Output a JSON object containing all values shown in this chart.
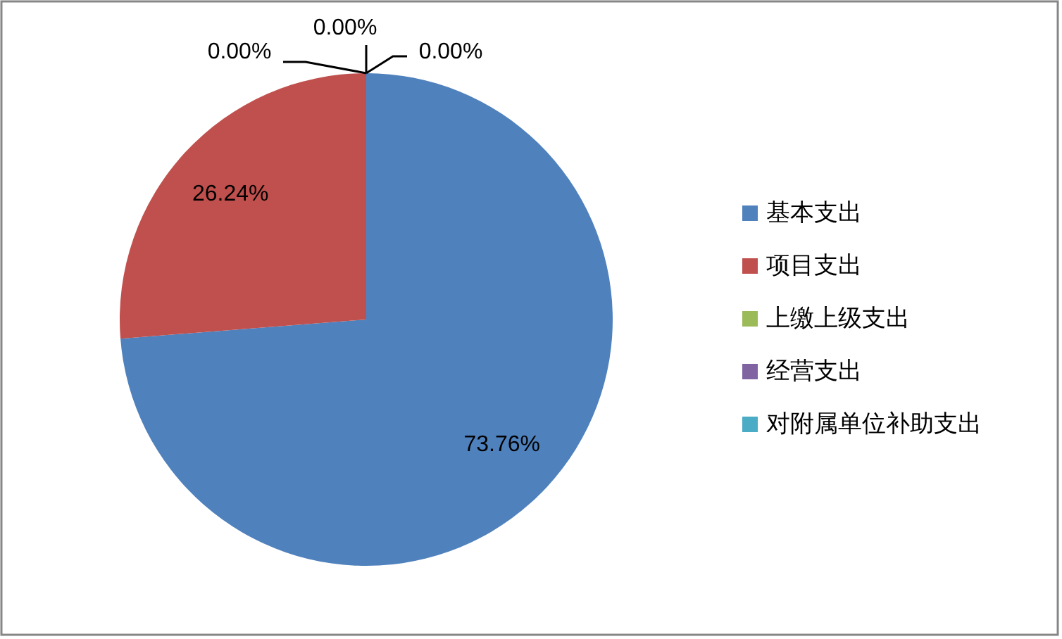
{
  "chart_data": {
    "type": "pie",
    "categories": [
      "基本支出",
      "项目支出",
      "上缴上级支出",
      "经营支出",
      "对附属单位补助支出"
    ],
    "values": [
      73.76,
      26.24,
      0,
      0,
      0
    ],
    "colors": [
      "#4f81bd",
      "#c0504d",
      "#9bbb59",
      "#8064a2",
      "#4bacc6"
    ],
    "value_labels": [
      "73.76%",
      "26.24%",
      "0.00%",
      "0.00%",
      "0.00%"
    ],
    "legend": "right"
  }
}
